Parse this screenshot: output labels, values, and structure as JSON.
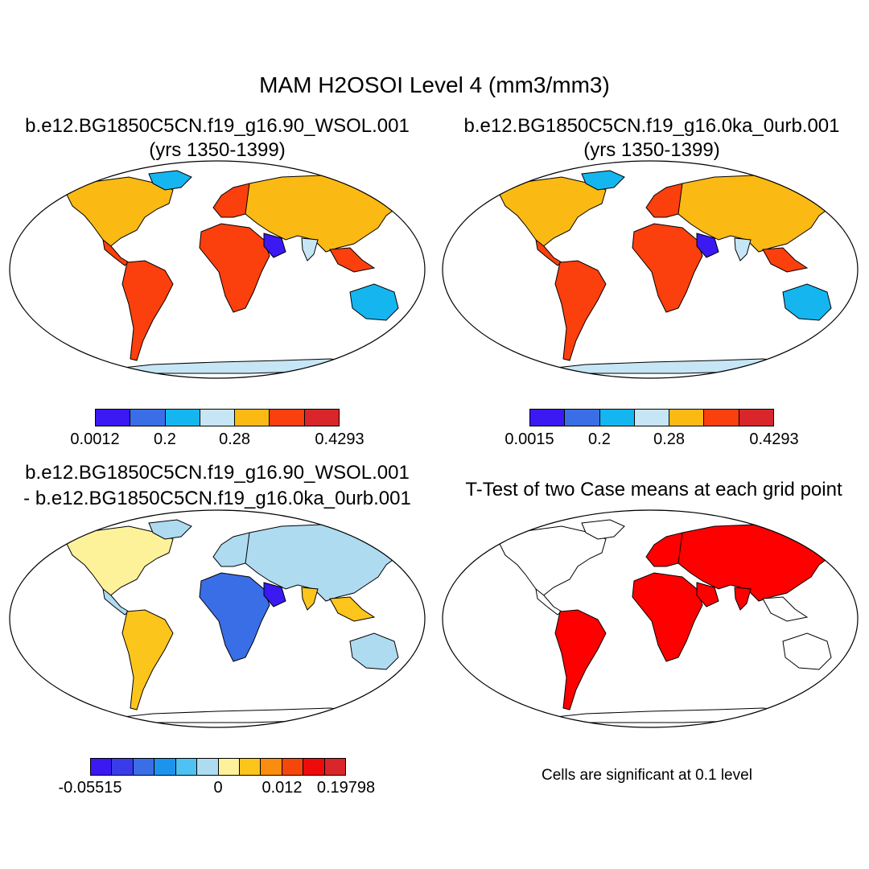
{
  "figure": {
    "title": "MAM H2OSOI Level 4 (mm3/mm3)"
  },
  "panels": {
    "top_left": {
      "case_line": "b.e12.BG1850C5CN.f19_g16.90_WSOL.001",
      "years_line": "(yrs 1350-1399)",
      "colorbar": {
        "colors": [
          "#3a19f2",
          "#3a6ee6",
          "#15b6f0",
          "#c6e6f5",
          "#fbb914",
          "#fb3f0d",
          "#d8262a"
        ],
        "labels": [
          "0.0012",
          "0.2",
          "0.28",
          "0.4293"
        ]
      }
    },
    "top_right": {
      "case_line": "b.e12.BG1850C5CN.f19_g16.0ka_0urb.001",
      "years_line": "(yrs 1350-1399)",
      "colorbar": {
        "colors": [
          "#3a19f2",
          "#3a6ee6",
          "#15b6f0",
          "#c6e6f5",
          "#fbb914",
          "#fb3f0d",
          "#d8262a"
        ],
        "labels": [
          "0.0015",
          "0.2",
          "0.28",
          "0.4293"
        ]
      }
    },
    "bottom_left": {
      "line1": "b.e12.BG1850C5CN.f19_g16.90_WSOL.001",
      "line2": "- b.e12.BG1850C5CN.f19_g16.0ka_0urb.001",
      "colorbar": {
        "colors": [
          "#3a19f2",
          "#3b3ce9",
          "#3a6ee6",
          "#1e93ee",
          "#4fc1f2",
          "#aedbf0",
          "#fdf29a",
          "#fbc51c",
          "#fa8c0f",
          "#f5460c",
          "#ee0b0b",
          "#d8262a"
        ],
        "labels": [
          "-0.05515",
          "0",
          "0.012",
          "0.19798"
        ]
      }
    },
    "bottom_right": {
      "title": "T-Test of two Case means at each grid point",
      "note": "Cells are significant at 0.1 level",
      "significant_color": "#ff0000"
    }
  }
}
